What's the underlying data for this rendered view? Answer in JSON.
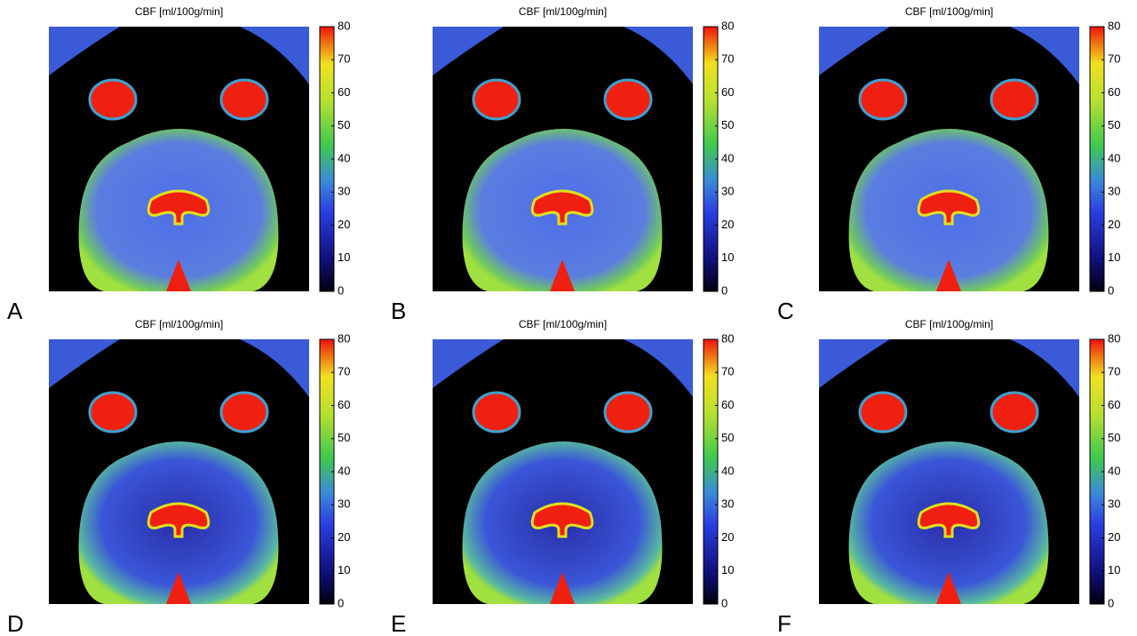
{
  "panels": [
    {
      "label": "A",
      "title": "CBF [ml/100g/min]",
      "colorbar": {
        "ticks": [
          0,
          10,
          20,
          30,
          40,
          50,
          60,
          70,
          80
        ]
      }
    },
    {
      "label": "B",
      "title": "CBF [ml/100g/min]",
      "colorbar": {
        "ticks": [
          0,
          10,
          20,
          30,
          40,
          50,
          60,
          70,
          80
        ]
      }
    },
    {
      "label": "C",
      "title": "CBF [ml/100g/min]",
      "colorbar": {
        "ticks": [
          0,
          10,
          20,
          30,
          40,
          50,
          60,
          70,
          80
        ]
      }
    },
    {
      "label": "D",
      "title": "CBF [ml/100g/min]",
      "colorbar": {
        "ticks": [
          0,
          10,
          20,
          30,
          40,
          50,
          60,
          70,
          80
        ]
      }
    },
    {
      "label": "E",
      "title": "CBF [ml/100g/min]",
      "colorbar": {
        "ticks": [
          0,
          10,
          20,
          30,
          40,
          50,
          60,
          70,
          80
        ]
      }
    },
    {
      "label": "F",
      "title": "CBF [ml/100g/min]",
      "colorbar": {
        "ticks": [
          0,
          10,
          20,
          30,
          40,
          50,
          60,
          70,
          80
        ]
      }
    }
  ]
}
